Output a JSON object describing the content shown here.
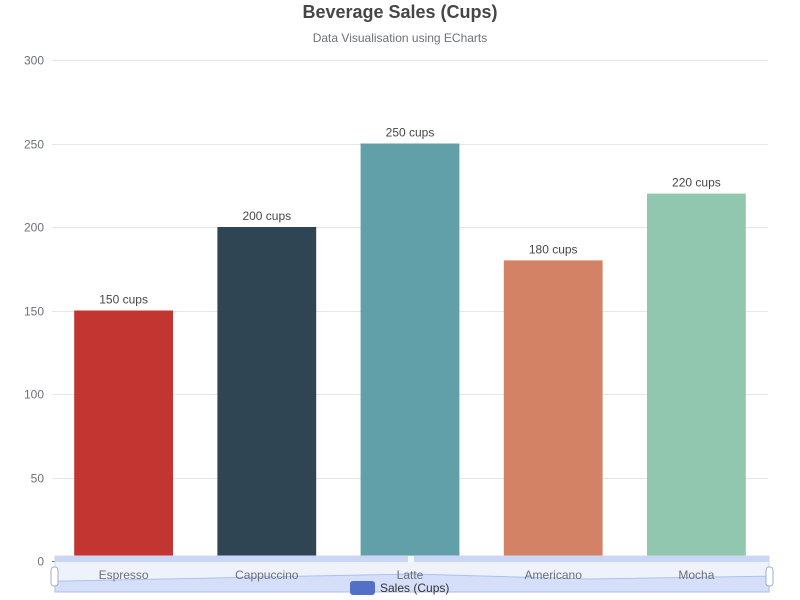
{
  "title": "Beverage Sales (Cups)",
  "subtitle": "Data Visualisation using ECharts",
  "chart_data": {
    "type": "bar",
    "categories": [
      "Espresso",
      "Cappuccino",
      "Latte",
      "Americano",
      "Mocha"
    ],
    "series": [
      {
        "name": "Sales (Cups)",
        "values": [
          150,
          200,
          250,
          180,
          220
        ],
        "label_suffix": " cups"
      }
    ],
    "bar_colors": [
      "#c23531",
      "#2f4554",
      "#61a0a8",
      "#d48265",
      "#91c7ae"
    ],
    "legend_color": "#5470c6",
    "ylim": [
      0,
      300
    ],
    "yticks": [
      0,
      50,
      100,
      150,
      200,
      250,
      300
    ],
    "grid": true,
    "legend_position": "bottom-center",
    "datazoom": "bottom slider"
  }
}
